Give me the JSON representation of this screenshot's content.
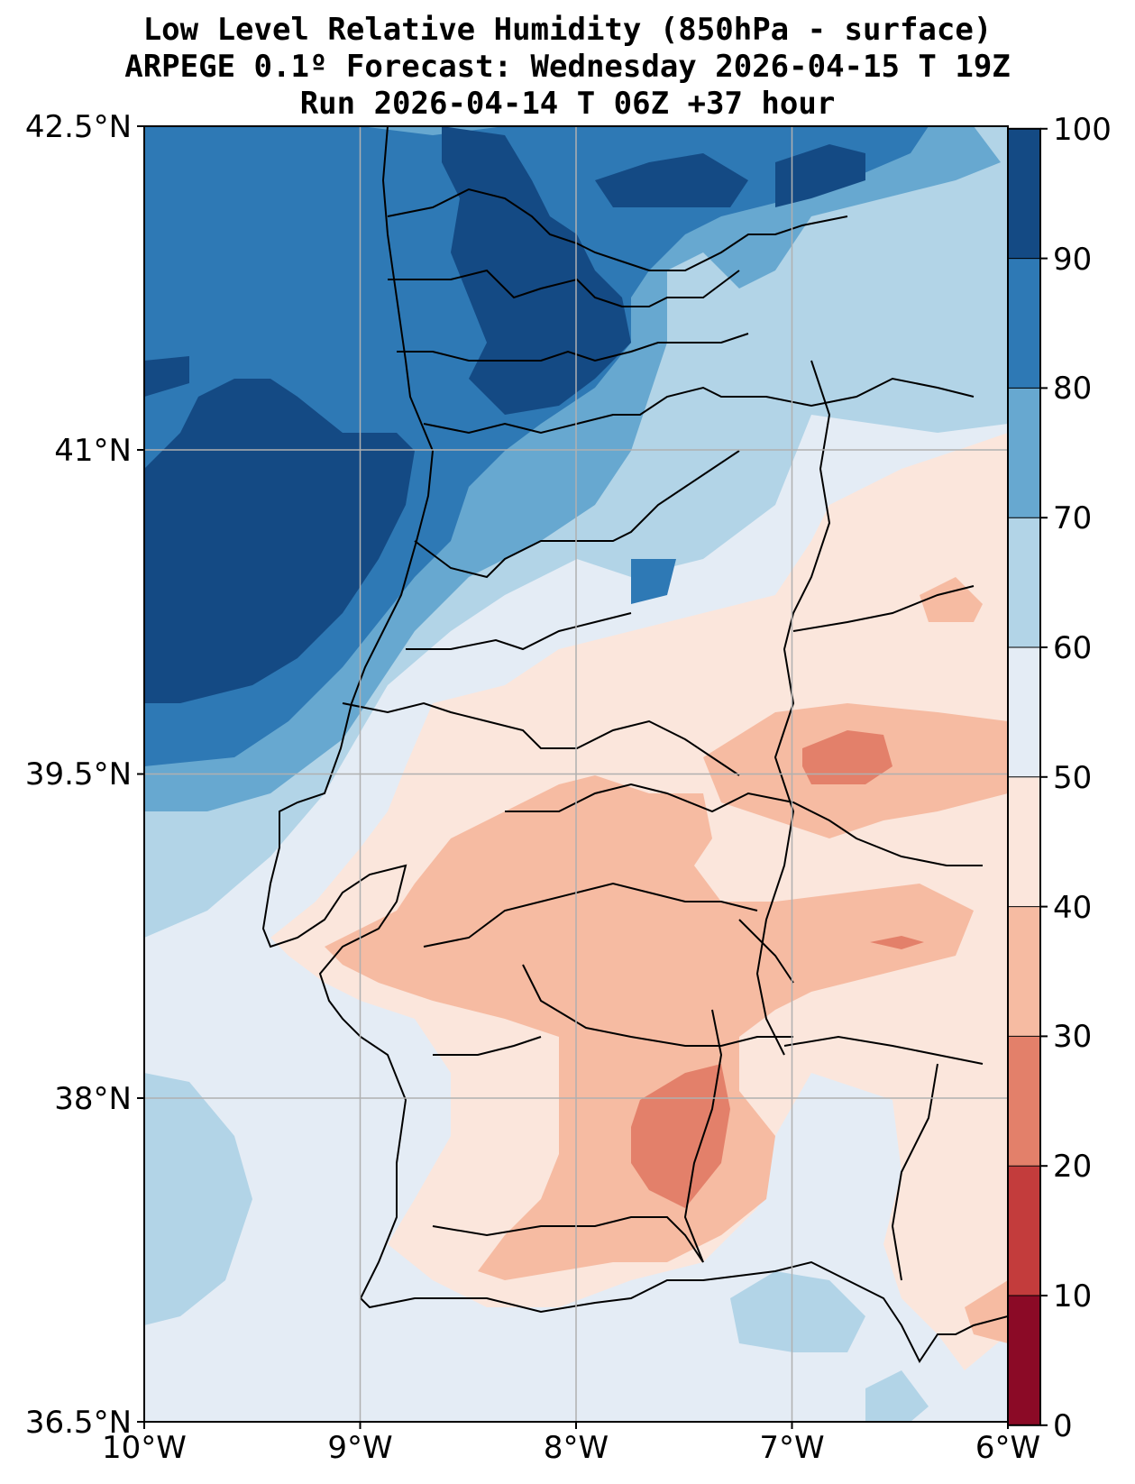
{
  "title": {
    "line1": "Low Level Relative Humidity (850hPa - surface)",
    "line2": "ARPEGE 0.1º Forecast: Wednesday 2026-04-15 T 19Z",
    "line3": "Run 2026-04-14 T 06Z +37 hour"
  },
  "map": {
    "lat_range": [
      36.5,
      42.5
    ],
    "lon_range": [
      -10,
      -6
    ],
    "lat_ticks": [
      "42.5°N",
      "41°N",
      "39.5°N",
      "38°N",
      "36.5°N"
    ],
    "lon_ticks": [
      "10°W",
      "9°W",
      "8°W",
      "7°W",
      "6°W"
    ],
    "grid": true
  },
  "colorbar": {
    "ticks": [
      "100",
      "90",
      "80",
      "70",
      "60",
      "50",
      "40",
      "30",
      "20",
      "10",
      "0"
    ],
    "levels": [
      0,
      10,
      20,
      30,
      40,
      50,
      60,
      70,
      80,
      90,
      100
    ],
    "colors": [
      "#8b0a26",
      "#c33c3c",
      "#e3806a",
      "#f6bba2",
      "#fbe6dc",
      "#e4ecf5",
      "#b2d4e7",
      "#67a8d0",
      "#2e79b5",
      "#144a84"
    ]
  }
}
